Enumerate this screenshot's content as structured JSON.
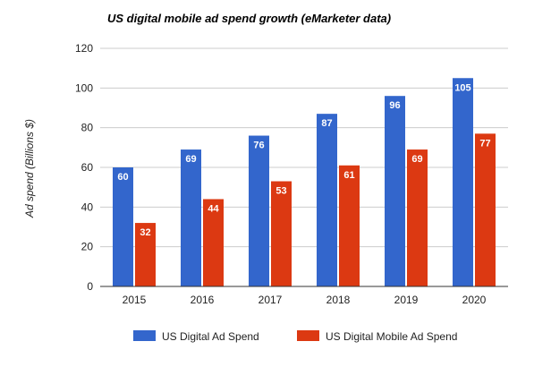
{
  "chart_data": {
    "type": "bar",
    "title": "US digital mobile ad spend growth (eMarketer data)",
    "xlabel": "",
    "ylabel": "Ad spend (Billions $)",
    "ylim": [
      0,
      120
    ],
    "yticks": [
      0,
      20,
      40,
      60,
      80,
      100,
      120
    ],
    "grid": true,
    "legend_position": "bottom",
    "categories": [
      "2015",
      "2016",
      "2017",
      "2018",
      "2019",
      "2020"
    ],
    "series": [
      {
        "name": "US Digital Ad Spend",
        "color": "#3366cc",
        "values": [
          60,
          69,
          76,
          87,
          96,
          105
        ]
      },
      {
        "name": "US Digital Mobile Ad Spend",
        "color": "#dc3912",
        "values": [
          32,
          44,
          53,
          61,
          69,
          77
        ]
      }
    ]
  }
}
